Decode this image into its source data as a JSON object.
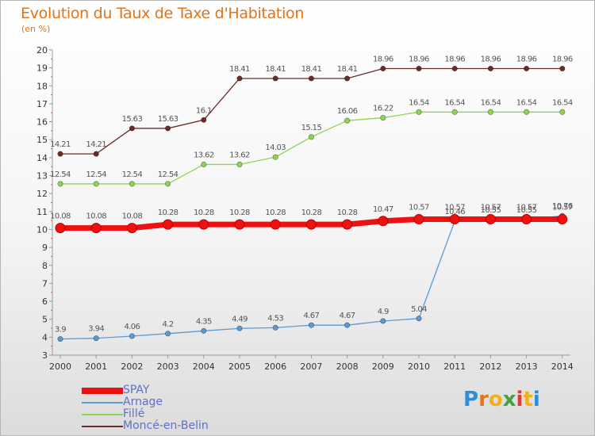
{
  "header": {
    "title": "Evolution du Taux de Taxe d'Habitation",
    "unit": "(en %)"
  },
  "brand": {
    "letters": [
      "P",
      "r",
      "o",
      "x",
      "i",
      "t",
      "i"
    ],
    "colors": [
      "#2f8ed8",
      "#e8731a",
      "#f0b21a",
      "#43a047",
      "#e53935",
      "#f0b21a",
      "#2f8ed8"
    ]
  },
  "chart_data": {
    "type": "line",
    "title": "Evolution du Taux de Taxe d'Habitation",
    "subtitle": "(en %)",
    "xlabel": "",
    "ylabel": "",
    "x": [
      "2000",
      "2001",
      "2002",
      "2003",
      "2004",
      "2005",
      "2006",
      "2007",
      "2008",
      "2009",
      "2010",
      "2011",
      "2012",
      "2013",
      "2014"
    ],
    "yticks": [
      "3",
      "4",
      "5",
      "6",
      "7",
      "8",
      "9",
      "10",
      "11",
      "12",
      "13",
      "14",
      "15",
      "16",
      "17",
      "18",
      "19",
      "20"
    ],
    "ylim": [
      3,
      20
    ],
    "grid": false,
    "legend_position": "bottom-left",
    "series": [
      {
        "name": "SPAY",
        "color": "#ee1111",
        "values": [
          10.08,
          10.08,
          10.08,
          10.28,
          10.28,
          10.28,
          10.28,
          10.28,
          10.28,
          10.47,
          10.57,
          10.57,
          10.57,
          10.57,
          10.57
        ],
        "labels": [
          "10.08",
          "10.08",
          "10.08",
          "10.28",
          "10.28",
          "10.28",
          "10.28",
          "10.28",
          "10.28",
          "10.47",
          "10.57",
          "10.57",
          "10.57",
          "10.57",
          "10.57"
        ]
      },
      {
        "name": "Arnage",
        "color": "#5b9bd5",
        "values": [
          3.9,
          3.94,
          4.06,
          4.2,
          4.35,
          4.49,
          4.53,
          4.67,
          4.67,
          4.9,
          5.04,
          10.46,
          10.55,
          10.55,
          10.76
        ],
        "labels": [
          "3.9",
          "3.94",
          "4.06",
          "4.2",
          "4.35",
          "4.49",
          "4.53",
          "4.67",
          "4.67",
          "4.9",
          "5.04",
          "10.46",
          "10.55",
          "10.55",
          "10.76"
        ]
      },
      {
        "name": "Fillé",
        "color": "#8ed650",
        "values": [
          12.54,
          12.54,
          12.54,
          12.54,
          13.62,
          13.62,
          14.03,
          15.15,
          16.06,
          16.22,
          16.54,
          16.54,
          16.54,
          16.54,
          16.54
        ],
        "labels": [
          "12.54",
          "12.54",
          "12.54",
          "12.54",
          "13.62",
          "13.62",
          "14.03",
          "15.15",
          "16.06",
          "16.22",
          "16.54",
          "16.54",
          "16.54",
          "16.54",
          "16.54"
        ]
      },
      {
        "name": "Moncé-en-Belin",
        "color": "#6b2b2b",
        "values": [
          14.21,
          14.21,
          15.63,
          15.63,
          16.1,
          18.41,
          18.41,
          18.41,
          18.41,
          18.96,
          18.96,
          18.96,
          18.96,
          18.96,
          18.96
        ],
        "labels": [
          "14.21",
          "14.21",
          "15.63",
          "15.63",
          "16.1",
          "18.41",
          "18.41",
          "18.41",
          "18.41",
          "18.96",
          "18.96",
          "18.96",
          "18.96",
          "18.96",
          "18.96"
        ]
      }
    ]
  }
}
